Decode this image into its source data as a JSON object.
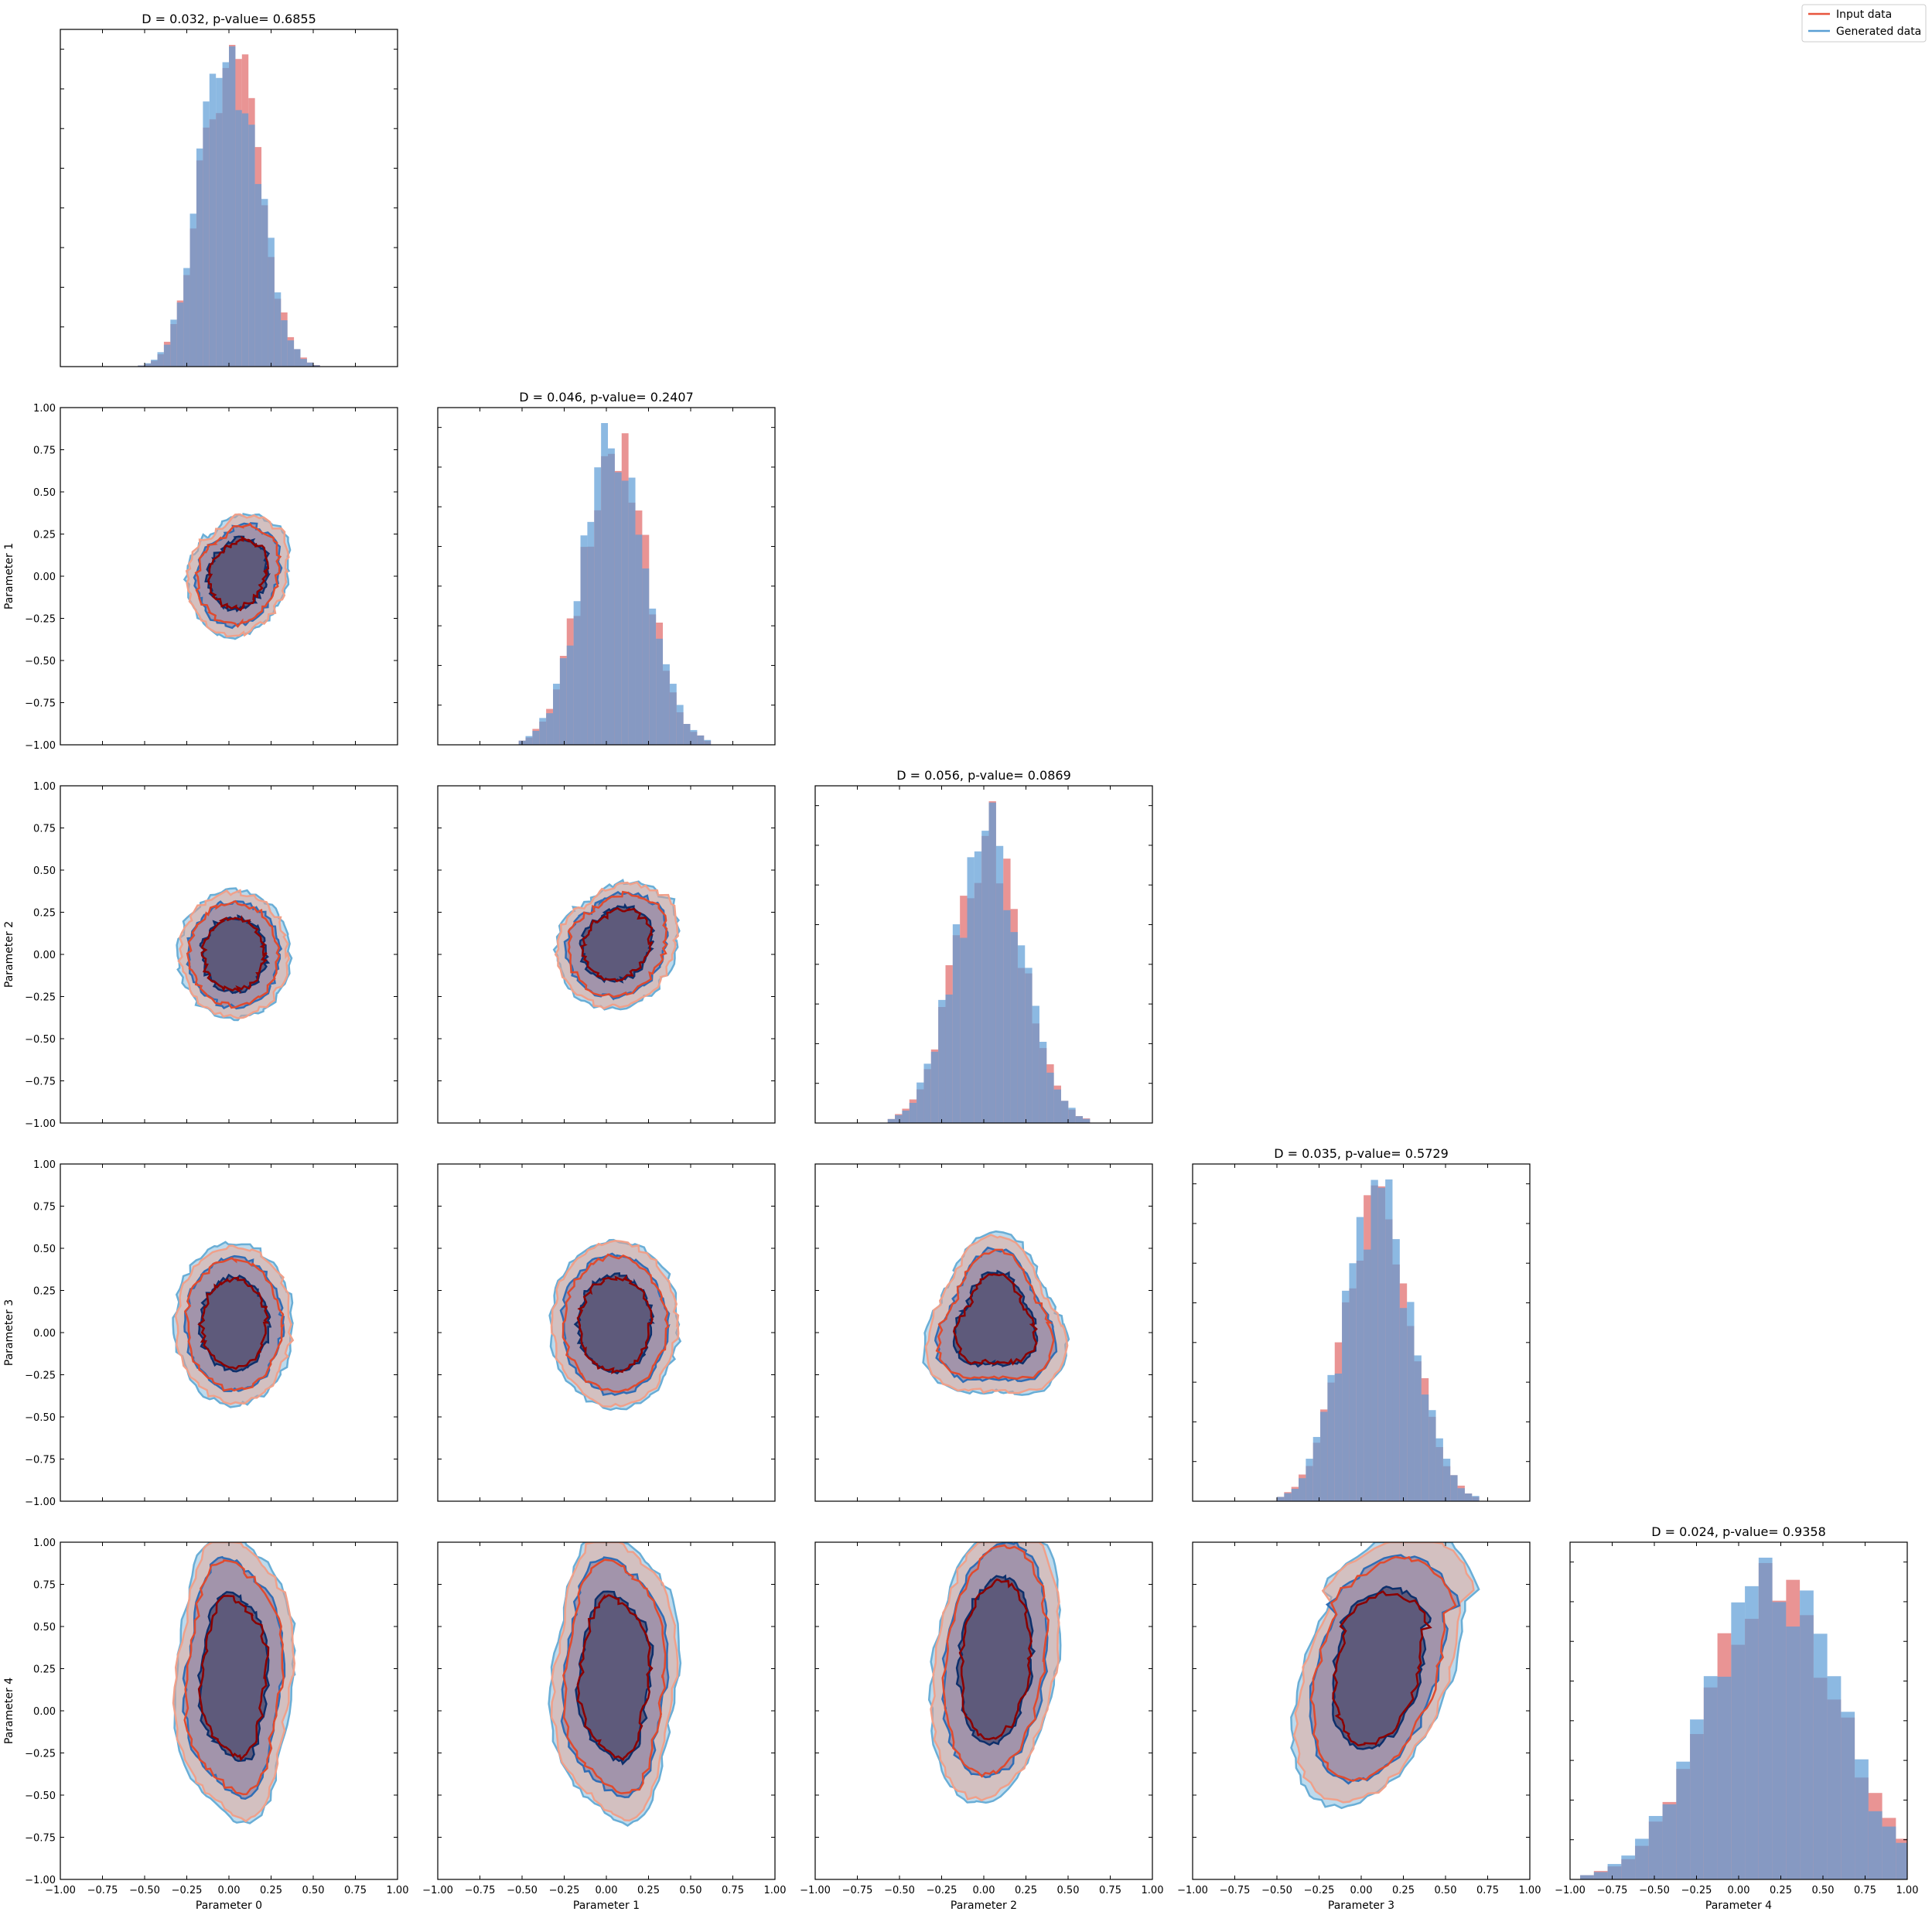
{
  "figure": {
    "type": "corner-plot"
  },
  "legend": {
    "placement": "top-right",
    "entries": [
      {
        "label": "Input data",
        "color": "#e8553e"
      },
      {
        "label": "Generated data",
        "color": "#5a9fd4"
      }
    ]
  },
  "colors": {
    "input_hist": "#e06666",
    "generated_hist": "#5b9bd5",
    "input_outer": "#f0a08a",
    "input_mid": "#e04a2e",
    "input_inner": "#8b0000",
    "gen_outer": "#6aaed6",
    "gen_mid": "#2f6db5",
    "gen_inner": "#0d2f6b",
    "core_fill": "#5b5678"
  },
  "chart_data": {
    "type": "corner",
    "parameters": [
      "Parameter 0",
      "Parameter 1",
      "Parameter 2",
      "Parameter 3",
      "Parameter 4"
    ],
    "axis_range": [
      -1.0,
      1.0
    ],
    "tick_labels": [
      "−1.00",
      "−0.75",
      "−0.50",
      "−0.25",
      "0.00",
      "0.25",
      "0.50",
      "0.75",
      "1.00"
    ],
    "tick_values": [
      -1.0,
      -0.75,
      -0.5,
      -0.25,
      0.0,
      0.25,
      0.5,
      0.75,
      1.0
    ],
    "diagonal": [
      {
        "index": 0,
        "title": "D = 0.032, p-value= 0.6855",
        "D": 0.032,
        "p_value": 0.6855,
        "center": 0.0,
        "spread": 0.18,
        "bimodal": true
      },
      {
        "index": 1,
        "title": "D = 0.046, p-value= 0.2407",
        "D": 0.046,
        "p_value": 0.2407,
        "center": 0.05,
        "spread": 0.19,
        "bimodal": false
      },
      {
        "index": 2,
        "title": "D = 0.056, p-value= 0.0869",
        "D": 0.056,
        "p_value": 0.0869,
        "center": 0.03,
        "spread": 0.2,
        "bimodal": false
      },
      {
        "index": 3,
        "title": "D = 0.035, p-value= 0.5729",
        "D": 0.035,
        "p_value": 0.5729,
        "center": 0.1,
        "spread": 0.2,
        "bimodal": false
      },
      {
        "index": 4,
        "title": "D = 0.024, p-value= 0.9358",
        "D": 0.024,
        "p_value": 0.9358,
        "center": 0.2,
        "spread": 0.38,
        "bimodal": false
      }
    ],
    "contours": [
      {
        "row": 1,
        "col": 0,
        "cx": 0.05,
        "cy": 0.02,
        "rx": 0.3,
        "ry": 0.38,
        "shape": "heart"
      },
      {
        "row": 2,
        "col": 0,
        "cx": 0.03,
        "cy": 0.0,
        "rx": 0.33,
        "ry": 0.38,
        "shape": "round"
      },
      {
        "row": 2,
        "col": 1,
        "cx": 0.06,
        "cy": 0.07,
        "rx": 0.36,
        "ry": 0.39,
        "shape": "heart"
      },
      {
        "row": 3,
        "col": 0,
        "cx": 0.03,
        "cy": 0.05,
        "rx": 0.35,
        "ry": 0.48,
        "shape": "round"
      },
      {
        "row": 3,
        "col": 1,
        "cx": 0.05,
        "cy": 0.05,
        "rx": 0.38,
        "ry": 0.5,
        "shape": "round"
      },
      {
        "row": 3,
        "col": 2,
        "cx": 0.07,
        "cy": 0.05,
        "rx": 0.4,
        "ry": 0.47,
        "shape": "triangle"
      },
      {
        "row": 4,
        "col": 0,
        "cx": 0.03,
        "cy": 0.2,
        "rx": 0.35,
        "ry": 0.85,
        "shape": "tall"
      },
      {
        "row": 4,
        "col": 1,
        "cx": 0.05,
        "cy": 0.2,
        "rx": 0.37,
        "ry": 0.85,
        "shape": "tall"
      },
      {
        "row": 4,
        "col": 2,
        "cx": 0.07,
        "cy": 0.3,
        "rx": 0.37,
        "ry": 0.85,
        "shape": "tilt"
      },
      {
        "row": 4,
        "col": 3,
        "cx": 0.1,
        "cy": 0.25,
        "rx": 0.45,
        "ry": 0.82,
        "shape": "vshape"
      }
    ]
  }
}
